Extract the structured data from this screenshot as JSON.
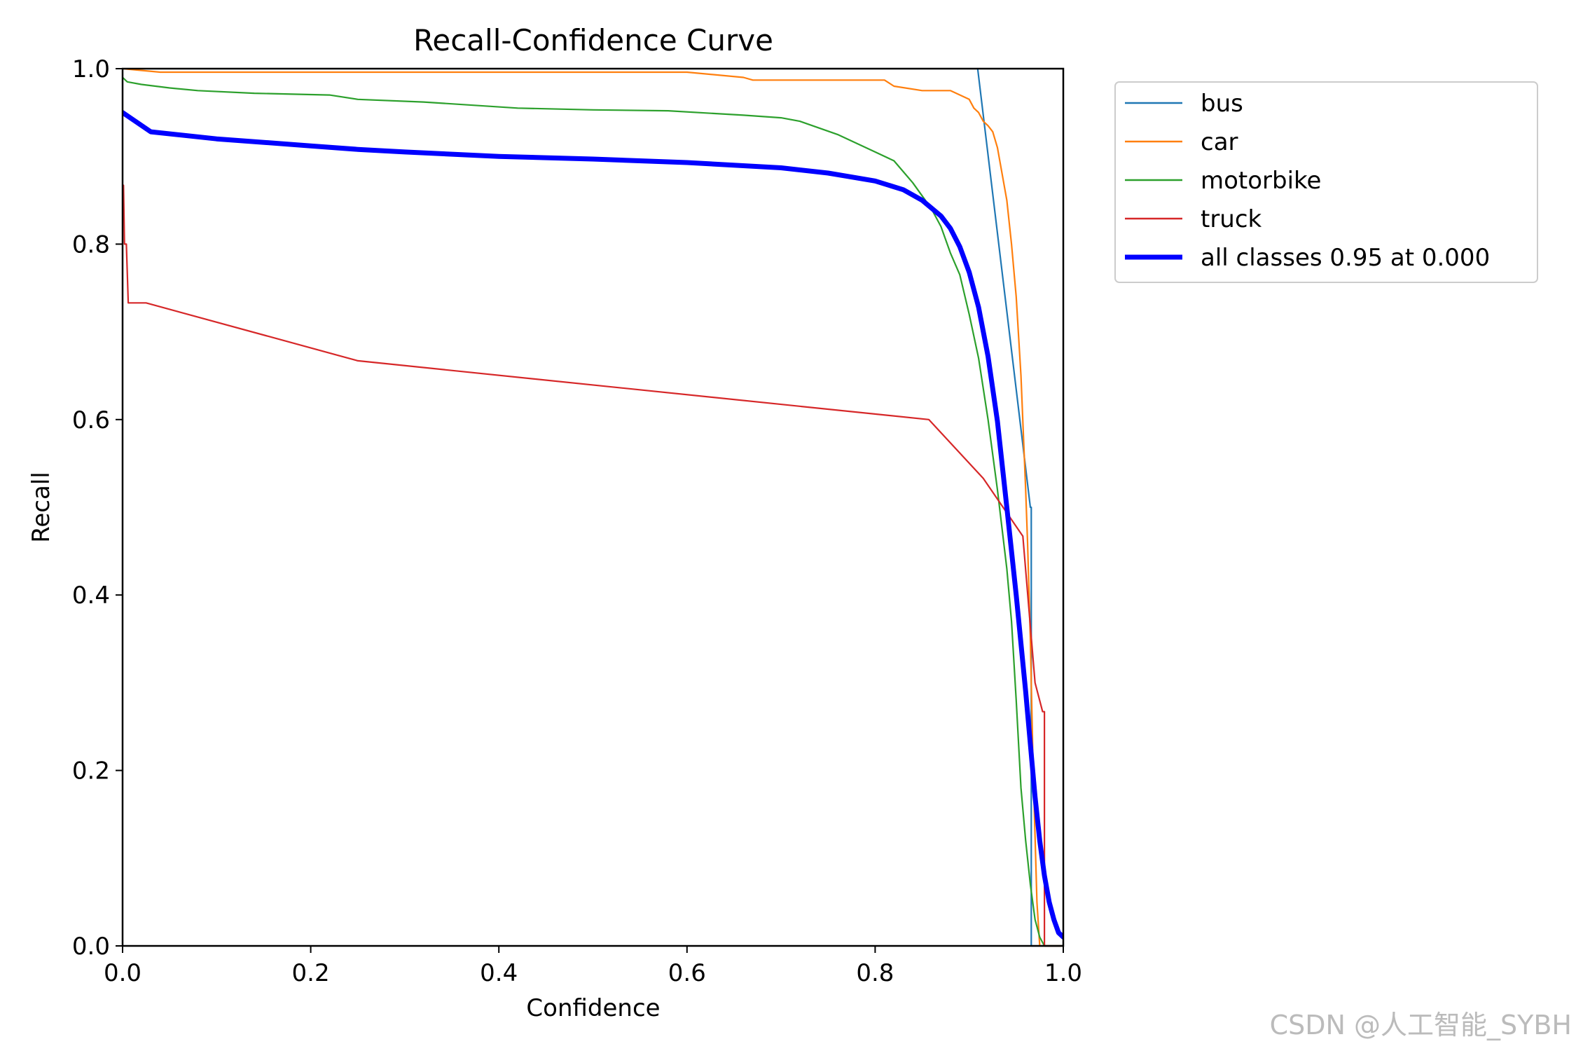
{
  "chart_data": {
    "type": "line",
    "title": "Recall-Confidence Curve",
    "xlabel": "Confidence",
    "ylabel": "Recall",
    "xlim": [
      0,
      1
    ],
    "ylim": [
      0,
      1
    ],
    "xticks": [
      "0.0",
      "0.2",
      "0.4",
      "0.6",
      "0.8",
      "1.0"
    ],
    "yticks": [
      "0.0",
      "0.2",
      "0.4",
      "0.6",
      "0.8",
      "1.0"
    ],
    "grid": false,
    "legend_position": "outside top-right",
    "series": [
      {
        "name": "bus",
        "color": "#1f77b4",
        "line_width": "thin",
        "x": [
          0.909,
          0.965,
          0.966,
          0.966,
          1.0
        ],
        "y": [
          1.0,
          0.5,
          0.5,
          0.0,
          0.0
        ]
      },
      {
        "name": "car",
        "color": "#ff7f0e",
        "line_width": "thin",
        "x": [
          0.0,
          0.04,
          0.6,
          0.66,
          0.67,
          0.81,
          0.82,
          0.85,
          0.88,
          0.9,
          0.905,
          0.91,
          0.915,
          0.92,
          0.925,
          0.93,
          0.935,
          0.94,
          0.945,
          0.95,
          0.955,
          0.96,
          0.962,
          0.965,
          0.968,
          0.972,
          0.975,
          0.98,
          1.0
        ],
        "y": [
          1.0,
          0.996,
          0.996,
          0.99,
          0.987,
          0.987,
          0.98,
          0.975,
          0.975,
          0.965,
          0.955,
          0.95,
          0.94,
          0.935,
          0.928,
          0.91,
          0.88,
          0.85,
          0.8,
          0.74,
          0.65,
          0.52,
          0.46,
          0.35,
          0.2,
          0.05,
          0.0,
          0.0,
          0.0
        ]
      },
      {
        "name": "motorbike",
        "color": "#2ca02c",
        "line_width": "thin",
        "x": [
          0.0,
          0.005,
          0.02,
          0.05,
          0.08,
          0.14,
          0.22,
          0.25,
          0.32,
          0.42,
          0.5,
          0.58,
          0.66,
          0.7,
          0.72,
          0.76,
          0.8,
          0.82,
          0.84,
          0.86,
          0.87,
          0.88,
          0.89,
          0.9,
          0.91,
          0.92,
          0.93,
          0.94,
          0.945,
          0.95,
          0.955,
          0.96,
          0.965,
          0.97,
          0.975,
          0.98,
          1.0
        ],
        "y": [
          0.99,
          0.985,
          0.982,
          0.978,
          0.975,
          0.972,
          0.97,
          0.965,
          0.962,
          0.955,
          0.953,
          0.952,
          0.947,
          0.944,
          0.94,
          0.925,
          0.905,
          0.895,
          0.87,
          0.84,
          0.82,
          0.79,
          0.765,
          0.72,
          0.67,
          0.6,
          0.52,
          0.43,
          0.37,
          0.28,
          0.18,
          0.12,
          0.07,
          0.03,
          0.01,
          0.0,
          0.0
        ]
      },
      {
        "name": "truck",
        "color": "#d62728",
        "line_width": "thin",
        "x": [
          0.0,
          0.001,
          0.002,
          0.004,
          0.006,
          0.025,
          0.25,
          0.857,
          0.915,
          0.957,
          0.97,
          0.978,
          0.98,
          0.98,
          1.0
        ],
        "y": [
          0.867,
          0.867,
          0.8,
          0.8,
          0.733,
          0.733,
          0.667,
          0.6,
          0.533,
          0.467,
          0.3,
          0.267,
          0.267,
          0.0,
          0.0
        ]
      },
      {
        "name": "all classes 0.95 at 0.000",
        "color": "#0000ff",
        "line_width": "thick",
        "x": [
          0.0,
          0.03,
          0.1,
          0.2,
          0.25,
          0.3,
          0.4,
          0.5,
          0.6,
          0.7,
          0.75,
          0.8,
          0.83,
          0.85,
          0.87,
          0.88,
          0.89,
          0.9,
          0.91,
          0.92,
          0.93,
          0.94,
          0.95,
          0.96,
          0.965,
          0.97,
          0.975,
          0.98,
          0.985,
          0.99,
          0.995,
          1.0
        ],
        "y": [
          0.95,
          0.928,
          0.92,
          0.912,
          0.908,
          0.905,
          0.9,
          0.897,
          0.893,
          0.887,
          0.881,
          0.872,
          0.862,
          0.85,
          0.832,
          0.818,
          0.797,
          0.768,
          0.728,
          0.672,
          0.598,
          0.5,
          0.4,
          0.29,
          0.23,
          0.17,
          0.12,
          0.08,
          0.05,
          0.03,
          0.015,
          0.01
        ]
      }
    ]
  },
  "watermark": "CSDN @人工智能_SYBH"
}
